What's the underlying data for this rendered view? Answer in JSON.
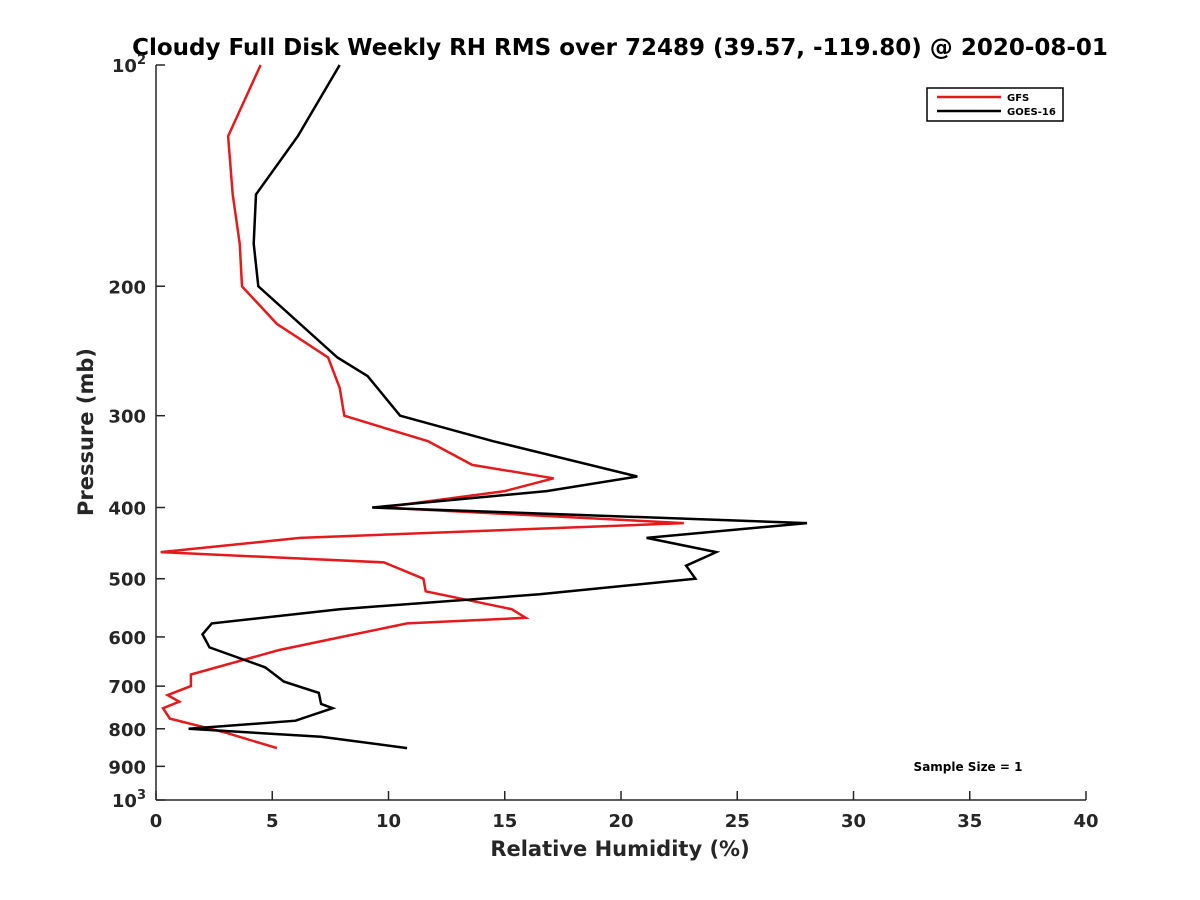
{
  "chart_data": {
    "type": "line",
    "title": "Cloudy Full Disk Weekly RH RMS over 72489 (39.57, -119.80) @ 2020-08-01",
    "xlabel": "Relative Humidity (%)",
    "ylabel": "Pressure (mb)",
    "xlim": [
      0,
      40
    ],
    "ylim": [
      100,
      1000
    ],
    "yscale": "log",
    "y_reversed": true,
    "xticks": [
      0,
      5,
      10,
      15,
      20,
      25,
      30,
      35,
      40
    ],
    "xtick_labels": [
      "0",
      "5",
      "10",
      "15",
      "20",
      "25",
      "30",
      "35",
      "40"
    ],
    "yticks": [
      100,
      200,
      300,
      400,
      500,
      600,
      700,
      800,
      900,
      1000
    ],
    "ytick_labels": [
      {
        "base": "10",
        "exp": "2"
      },
      {
        "base": "200",
        "exp": ""
      },
      {
        "base": "300",
        "exp": ""
      },
      {
        "base": "400",
        "exp": ""
      },
      {
        "base": "500",
        "exp": ""
      },
      {
        "base": "600",
        "exp": ""
      },
      {
        "base": "700",
        "exp": ""
      },
      {
        "base": "800",
        "exp": ""
      },
      {
        "base": "900",
        "exp": ""
      },
      {
        "base": "10",
        "exp": "3"
      }
    ],
    "grid": false,
    "legend_position": "top-right",
    "annotation": "Sample Size = 1",
    "series": [
      {
        "name": "GFS",
        "color": "#e41a1c",
        "points": [
          [
            4.5,
            100
          ],
          [
            3.1,
            125
          ],
          [
            3.3,
            150
          ],
          [
            3.6,
            175
          ],
          [
            3.7,
            200
          ],
          [
            5.2,
            225
          ],
          [
            7.4,
            250
          ],
          [
            7.9,
            275
          ],
          [
            8.1,
            300
          ],
          [
            11.7,
            325
          ],
          [
            13.6,
            350
          ],
          [
            17.1,
            365
          ],
          [
            15.0,
            380
          ],
          [
            9.7,
            400
          ],
          [
            22.7,
            420
          ],
          [
            6.2,
            440
          ],
          [
            0.2,
            460
          ],
          [
            9.8,
            475
          ],
          [
            11.5,
            500
          ],
          [
            11.6,
            520
          ],
          [
            15.3,
            550
          ],
          [
            15.9,
            565
          ],
          [
            10.8,
            575
          ],
          [
            8.0,
            600
          ],
          [
            5.3,
            625
          ],
          [
            1.5,
            675
          ],
          [
            1.5,
            700
          ],
          [
            0.5,
            720
          ],
          [
            1.0,
            735
          ],
          [
            0.3,
            750
          ],
          [
            0.6,
            775
          ],
          [
            3.0,
            810
          ],
          [
            5.2,
            850
          ]
        ]
      },
      {
        "name": "GOES-16",
        "color": "#000000",
        "points": [
          [
            7.9,
            100
          ],
          [
            6.1,
            125
          ],
          [
            4.3,
            150
          ],
          [
            4.2,
            175
          ],
          [
            4.4,
            200
          ],
          [
            7.8,
            250
          ],
          [
            9.1,
            265
          ],
          [
            9.8,
            282
          ],
          [
            10.5,
            300
          ],
          [
            14.5,
            325
          ],
          [
            20.7,
            363
          ],
          [
            16.8,
            380
          ],
          [
            9.3,
            400
          ],
          [
            28.0,
            420
          ],
          [
            21.1,
            440
          ],
          [
            24.1,
            460
          ],
          [
            22.8,
            480
          ],
          [
            23.2,
            500
          ],
          [
            16.5,
            525
          ],
          [
            7.9,
            550
          ],
          [
            2.4,
            575
          ],
          [
            2.0,
            595
          ],
          [
            2.3,
            620
          ],
          [
            4.7,
            660
          ],
          [
            5.5,
            690
          ],
          [
            7.0,
            715
          ],
          [
            7.1,
            740
          ],
          [
            7.6,
            750
          ],
          [
            6.0,
            780
          ],
          [
            1.4,
            800
          ],
          [
            7.1,
            820
          ],
          [
            10.8,
            850
          ]
        ]
      }
    ]
  }
}
